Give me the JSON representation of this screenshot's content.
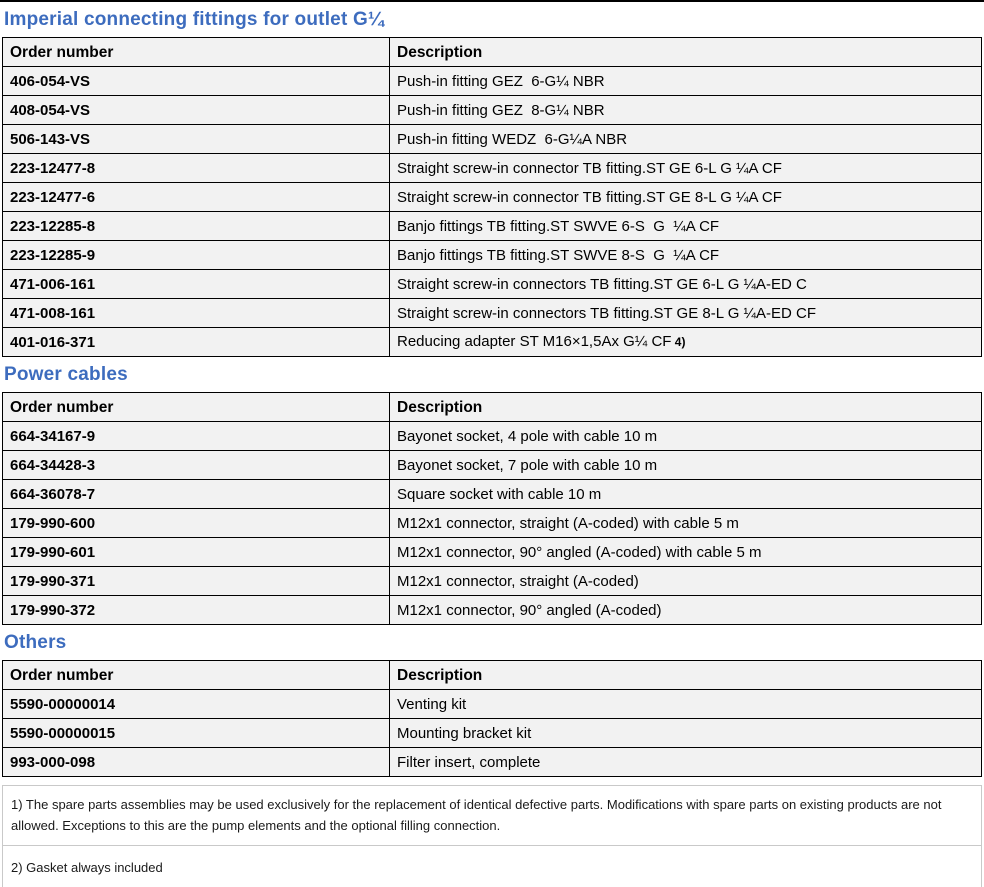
{
  "page": {
    "accent_color": "#3d6cbe",
    "table_border_color": "#000000",
    "cell_background": "#f2f2f2",
    "footnote_border_color": "#c9c9c9"
  },
  "sections": [
    {
      "title": "Imperial connecting fittings for outlet G¼",
      "columns": [
        "Order number",
        "Description"
      ],
      "rows": [
        {
          "order": "406-054-VS",
          "desc": "Push-in fitting GEZ  6-G¼ NBR"
        },
        {
          "order": "408-054-VS",
          "desc": "Push-in fitting GEZ  8-G¼ NBR"
        },
        {
          "order": "506-143-VS",
          "desc": "Push-in fitting WEDZ  6-G¼A NBR"
        },
        {
          "order": "223-12477-8",
          "desc": "Straight screw-in connector TB fitting.ST GE 6-L G ¼A CF"
        },
        {
          "order": "223-12477-6",
          "desc": "Straight screw-in connector TB fitting.ST GE 8-L G ¼A CF"
        },
        {
          "order": "223-12285-8",
          "desc": "Banjo fittings TB fitting.ST SWVE 6-S  G  ¼A CF"
        },
        {
          "order": "223-12285-9",
          "desc": "Banjo fittings TB fitting.ST SWVE 8-S  G  ¼A CF"
        },
        {
          "order": "471-006-161",
          "desc": "Straight screw-in connectors TB fitting.ST GE 6-L G ¼A-ED C"
        },
        {
          "order": "471-008-161",
          "desc": "Straight screw-in connectors TB fitting.ST GE 8-L G ¼A-ED CF"
        },
        {
          "order": "401-016-371",
          "desc": "Reducing adapter ST M16×1,5Ax G¼ CF",
          "ref": "4)"
        }
      ]
    },
    {
      "title": "Power cables",
      "columns": [
        "Order number",
        "Description"
      ],
      "rows": [
        {
          "order": "664-34167-9",
          "desc": "Bayonet socket, 4 pole with cable 10 m"
        },
        {
          "order": "664-34428-3",
          "desc": "Bayonet socket, 7 pole with cable 10 m"
        },
        {
          "order": "664-36078-7",
          "desc": "Square socket with cable 10 m"
        },
        {
          "order": "179-990-600",
          "desc": "M12x1 connector, straight (A-coded) with cable 5 m"
        },
        {
          "order": "179-990-601",
          "desc": "M12x1 connector, 90° angled (A-coded) with cable 5 m"
        },
        {
          "order": "179-990-371",
          "desc": "M12x1 connector, straight (A-coded)"
        },
        {
          "order": "179-990-372",
          "desc": "M12x1 connector, 90° angled (A-coded)"
        }
      ]
    },
    {
      "title": "Others",
      "columns": [
        "Order number",
        "Description"
      ],
      "rows": [
        {
          "order": "5590-00000014",
          "desc": "Venting kit"
        },
        {
          "order": "5590-00000015",
          "desc": "Mounting bracket kit"
        },
        {
          "order": "993-000-098",
          "desc": "Filter insert, complete"
        }
      ]
    }
  ],
  "footnotes": [
    "1) The spare parts assemblies may be used exclusively for the replacement of identical defective parts. Modifications with spare parts on existing products are not allowed. Exceptions to this are the pump elements and the optional filling connection.",
    "2) Gasket always included"
  ]
}
